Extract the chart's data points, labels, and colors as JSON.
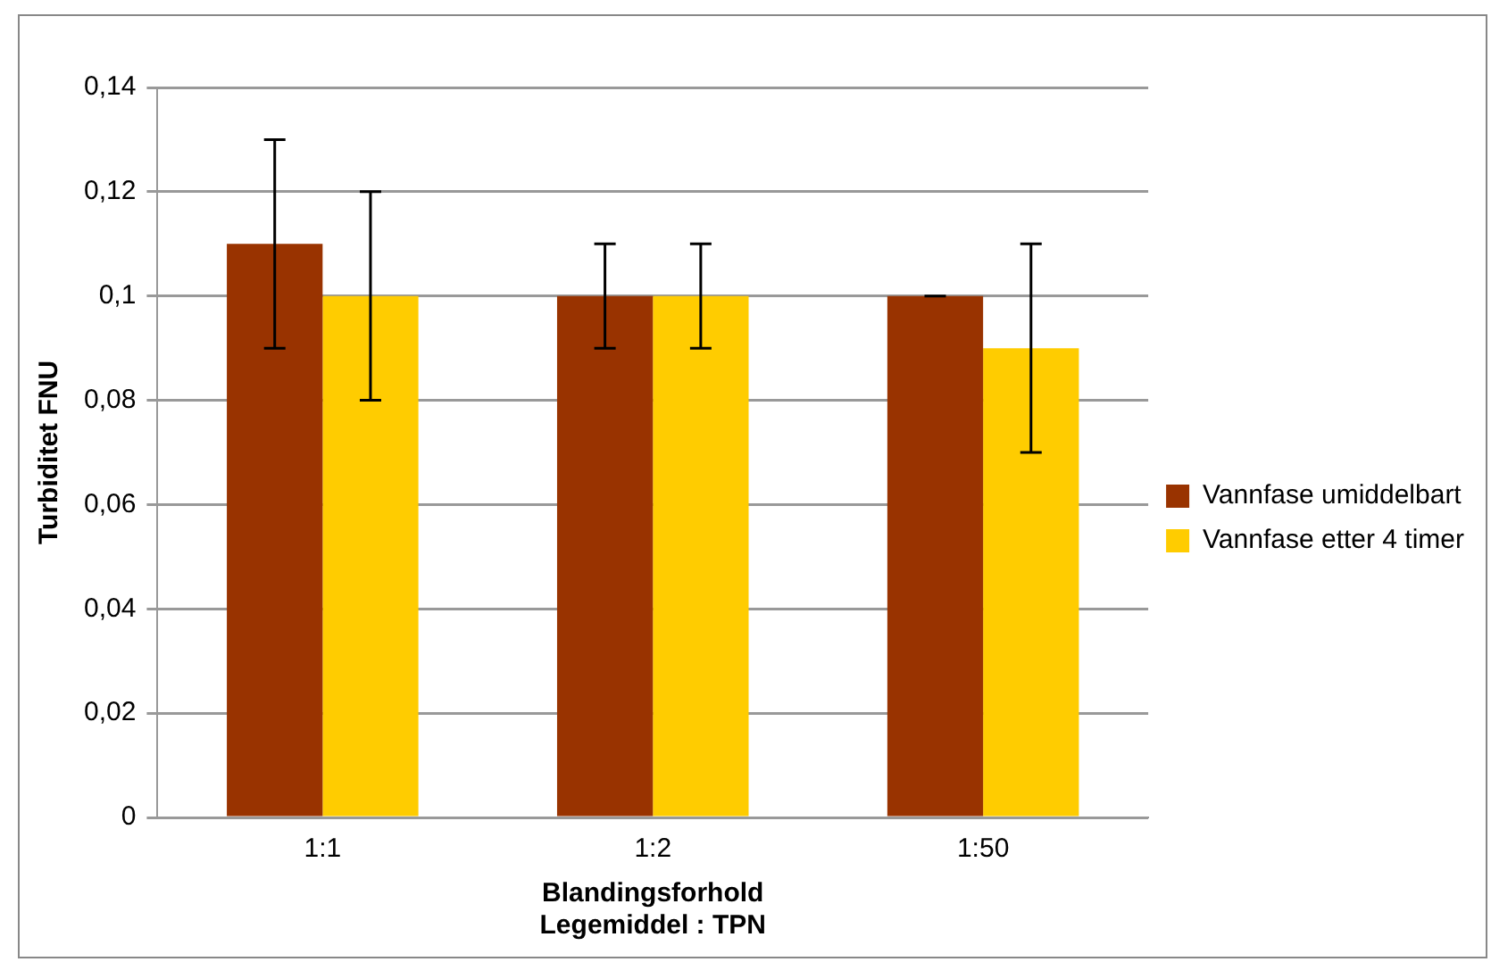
{
  "chart_data": {
    "type": "bar",
    "ylabel": "Turbiditet FNU",
    "xlabel": "Blandingsforhold\nLegemiddel : TPN",
    "categories": [
      "1:1",
      "1:2",
      "1:50"
    ],
    "series": [
      {
        "name": "Vannfase umiddelbart",
        "color": "#993300",
        "values": [
          0.11,
          0.1,
          0.1
        ],
        "errors": [
          0.02,
          0.01,
          0
        ]
      },
      {
        "name": "Vannfase etter 4 timer",
        "color": "#ffcc00",
        "values": [
          0.1,
          0.1,
          0.09
        ],
        "errors": [
          0.02,
          0.01,
          0.02
        ]
      }
    ],
    "ylim": [
      0,
      0.14
    ],
    "yticks": [
      {
        "value": 0,
        "label": "0"
      },
      {
        "value": 0.02,
        "label": "0,02"
      },
      {
        "value": 0.04,
        "label": "0,04"
      },
      {
        "value": 0.06,
        "label": "0,06"
      },
      {
        "value": 0.08,
        "label": "0,08"
      },
      {
        "value": 0.1,
        "label": "0,1"
      },
      {
        "value": 0.12,
        "label": "0,12"
      },
      {
        "value": 0.14,
        "label": "0,14"
      }
    ],
    "grid": "y",
    "legend": "right"
  }
}
